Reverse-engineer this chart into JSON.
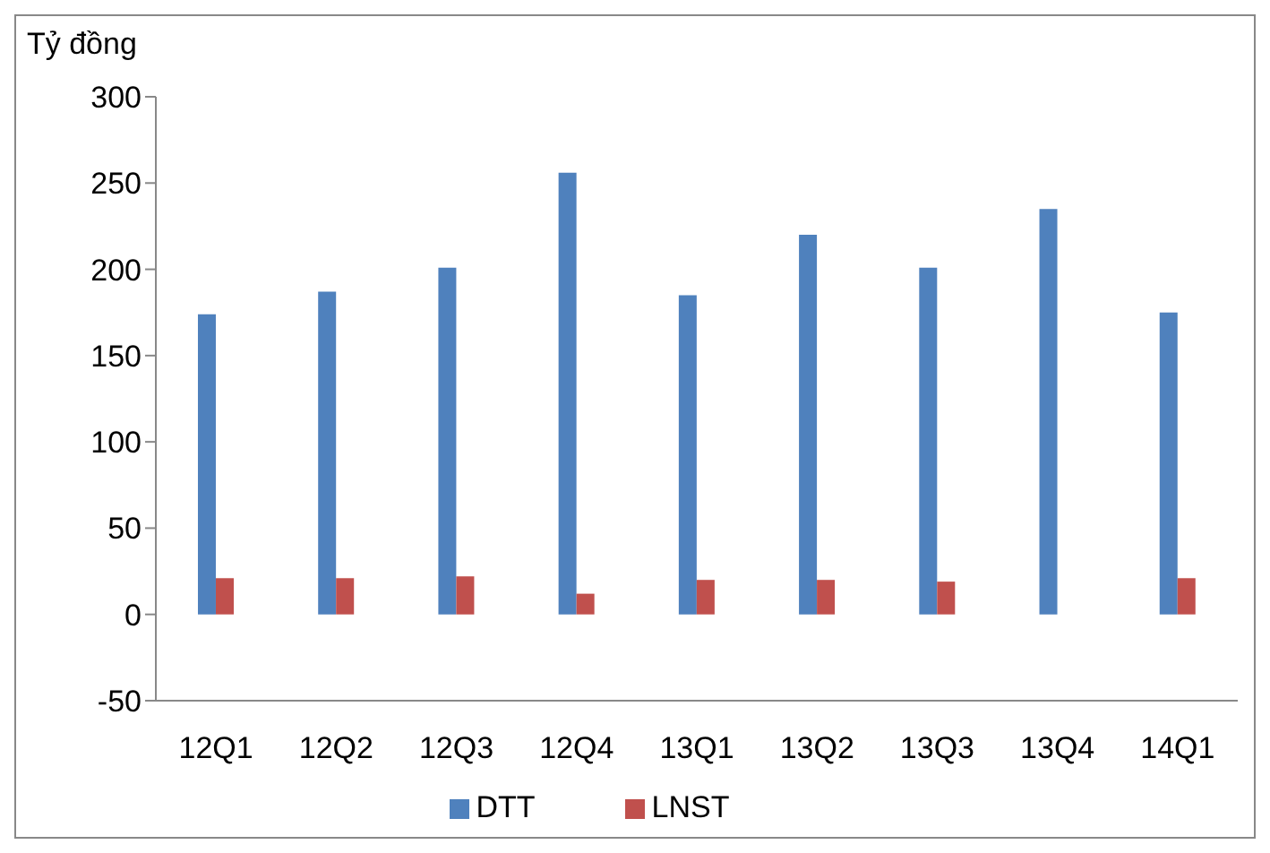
{
  "chart_data": {
    "type": "bar",
    "ylabel": "Tỷ đồng",
    "categories": [
      "12Q1",
      "12Q2",
      "12Q3",
      "12Q4",
      "13Q1",
      "13Q2",
      "13Q3",
      "13Q4",
      "14Q1"
    ],
    "series": [
      {
        "name": "DTT",
        "color": "#4f81bd",
        "values": [
          174,
          187,
          201,
          256,
          185,
          220,
          201,
          235,
          175
        ]
      },
      {
        "name": "LNST",
        "color": "#c0504d",
        "values": [
          21,
          21,
          22,
          12,
          20,
          20,
          19,
          null,
          21
        ]
      }
    ],
    "ylim": [
      -50,
      300
    ],
    "yticks": [
      -50,
      0,
      50,
      100,
      150,
      200,
      250,
      300
    ],
    "grid": false,
    "legend": "bottom"
  }
}
